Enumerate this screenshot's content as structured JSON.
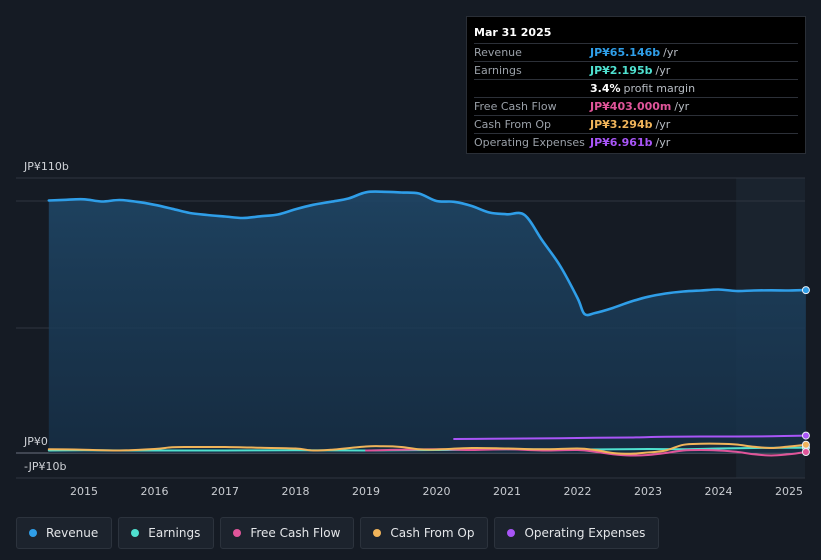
{
  "tooltip": {
    "date": "Mar 31 2025",
    "rows": [
      {
        "label": "Revenue",
        "value": "JP¥65.146b",
        "unit": "/yr",
        "color": "#2f9ee8"
      },
      {
        "label": "Earnings",
        "value": "JP¥2.195b",
        "unit": "/yr",
        "color": "#4fe0cf"
      },
      {
        "label": "",
        "value": "3.4%",
        "unit": "profit margin",
        "color": "#ffffff"
      },
      {
        "label": "Free Cash Flow",
        "value": "JP¥403.000m",
        "unit": "/yr",
        "color": "#e0559a"
      },
      {
        "label": "Cash From Op",
        "value": "JP¥3.294b",
        "unit": "/yr",
        "color": "#f0b45a"
      },
      {
        "label": "Operating Expenses",
        "value": "JP¥6.961b",
        "unit": "/yr",
        "color": "#a855f7"
      }
    ]
  },
  "legend": [
    {
      "label": "Revenue",
      "color": "#2f9ee8"
    },
    {
      "label": "Earnings",
      "color": "#4fe0cf"
    },
    {
      "label": "Free Cash Flow",
      "color": "#e0559a"
    },
    {
      "label": "Cash From Op",
      "color": "#f0b45a"
    },
    {
      "label": "Operating Expenses",
      "color": "#a855f7"
    }
  ],
  "chart_data": {
    "type": "line",
    "ylim": [
      -10,
      110
    ],
    "y_tick_labels": [
      {
        "value": 110,
        "label": "JP¥110b"
      },
      {
        "value": 0,
        "label": "JP¥0"
      },
      {
        "value": -10,
        "label": "-JP¥10b"
      }
    ],
    "x_tick_labels": [
      "2015",
      "2016",
      "2017",
      "2018",
      "2019",
      "2020",
      "2021",
      "2022",
      "2023",
      "2024",
      "2025"
    ],
    "forecast_shade_start": 2024.25,
    "series": [
      {
        "name": "Revenue",
        "color": "#2f9ee8",
        "fill": true,
        "points": [
          [
            2014.5,
            101.0
          ],
          [
            2014.75,
            101.3
          ],
          [
            2015.0,
            101.5
          ],
          [
            2015.25,
            100.6
          ],
          [
            2015.5,
            101.2
          ],
          [
            2015.75,
            100.5
          ],
          [
            2016.0,
            99.3
          ],
          [
            2016.25,
            97.7
          ],
          [
            2016.5,
            96.0
          ],
          [
            2016.75,
            95.2
          ],
          [
            2017.0,
            94.6
          ],
          [
            2017.25,
            94.0
          ],
          [
            2017.5,
            94.7
          ],
          [
            2017.75,
            95.4
          ],
          [
            2018.0,
            97.5
          ],
          [
            2018.25,
            99.3
          ],
          [
            2018.5,
            100.5
          ],
          [
            2018.75,
            101.8
          ],
          [
            2019.0,
            104.3
          ],
          [
            2019.25,
            104.5
          ],
          [
            2019.5,
            104.2
          ],
          [
            2019.75,
            103.8
          ],
          [
            2020.0,
            100.8
          ],
          [
            2020.25,
            100.5
          ],
          [
            2020.5,
            98.8
          ],
          [
            2020.75,
            96.2
          ],
          [
            2021.0,
            95.5
          ],
          [
            2021.25,
            95.2
          ],
          [
            2021.5,
            85.0
          ],
          [
            2021.75,
            75.0
          ],
          [
            2022.0,
            62.0
          ],
          [
            2022.1,
            55.6
          ],
          [
            2022.25,
            56.0
          ],
          [
            2022.5,
            58.0
          ],
          [
            2022.75,
            60.5
          ],
          [
            2023.0,
            62.5
          ],
          [
            2023.25,
            63.8
          ],
          [
            2023.5,
            64.6
          ],
          [
            2023.75,
            65.0
          ],
          [
            2024.0,
            65.4
          ],
          [
            2024.25,
            64.8
          ],
          [
            2024.5,
            65.0
          ],
          [
            2024.75,
            65.1
          ],
          [
            2025.0,
            65.0
          ],
          [
            2025.24,
            65.146
          ]
        ]
      },
      {
        "name": "Earnings",
        "color": "#4fe0cf",
        "points": [
          [
            2014.5,
            1.0
          ],
          [
            2015.0,
            1.1
          ],
          [
            2016.0,
            1.0
          ],
          [
            2017.0,
            1.0
          ],
          [
            2018.0,
            1.1
          ],
          [
            2019.0,
            1.0
          ],
          [
            2020.0,
            1.2
          ],
          [
            2021.0,
            1.5
          ],
          [
            2022.0,
            1.4
          ],
          [
            2023.0,
            1.6
          ],
          [
            2023.5,
            1.5
          ],
          [
            2024.0,
            1.8
          ],
          [
            2024.5,
            2.0
          ],
          [
            2025.0,
            2.1
          ],
          [
            2025.24,
            2.195
          ]
        ]
      },
      {
        "name": "Free Cash Flow",
        "color": "#e0559a",
        "points": [
          [
            2019.0,
            1.0
          ],
          [
            2020.0,
            1.5
          ],
          [
            2020.5,
            1.2
          ],
          [
            2021.0,
            1.5
          ],
          [
            2021.5,
            1.0
          ],
          [
            2022.0,
            1.2
          ],
          [
            2022.25,
            0.5
          ],
          [
            2022.5,
            -0.5
          ],
          [
            2022.75,
            -1.0
          ],
          [
            2023.0,
            -0.8
          ],
          [
            2023.25,
            0.0
          ],
          [
            2023.5,
            1.0
          ],
          [
            2023.75,
            1.2
          ],
          [
            2024.0,
            1.0
          ],
          [
            2024.25,
            0.5
          ],
          [
            2024.5,
            -0.5
          ],
          [
            2024.75,
            -1.0
          ],
          [
            2025.0,
            -0.5
          ],
          [
            2025.24,
            0.403
          ]
        ]
      },
      {
        "name": "Cash From Op",
        "color": "#f0b45a",
        "points": [
          [
            2014.5,
            1.5
          ],
          [
            2015.0,
            1.3
          ],
          [
            2015.5,
            1.0
          ],
          [
            2016.0,
            1.6
          ],
          [
            2016.25,
            2.3
          ],
          [
            2016.5,
            2.4
          ],
          [
            2017.0,
            2.4
          ],
          [
            2017.5,
            2.1
          ],
          [
            2018.0,
            1.8
          ],
          [
            2018.25,
            1.0
          ],
          [
            2018.5,
            1.3
          ],
          [
            2019.0,
            2.6
          ],
          [
            2019.25,
            2.7
          ],
          [
            2019.5,
            2.4
          ],
          [
            2019.75,
            1.5
          ],
          [
            2020.0,
            1.4
          ],
          [
            2020.5,
            2.0
          ],
          [
            2021.0,
            1.8
          ],
          [
            2021.5,
            1.5
          ],
          [
            2022.0,
            1.8
          ],
          [
            2022.25,
            1.2
          ],
          [
            2022.5,
            0.0
          ],
          [
            2022.75,
            -0.3
          ],
          [
            2023.0,
            0.2
          ],
          [
            2023.25,
            1.0
          ],
          [
            2023.5,
            3.3
          ],
          [
            2023.75,
            3.7
          ],
          [
            2024.0,
            3.7
          ],
          [
            2024.25,
            3.4
          ],
          [
            2024.5,
            2.5
          ],
          [
            2024.75,
            2.0
          ],
          [
            2025.0,
            2.6
          ],
          [
            2025.24,
            3.294
          ]
        ]
      },
      {
        "name": "Operating Expenses",
        "color": "#a855f7",
        "points": [
          [
            2020.25,
            5.6
          ],
          [
            2020.75,
            5.7
          ],
          [
            2021.25,
            5.8
          ],
          [
            2021.75,
            5.9
          ],
          [
            2022.25,
            6.1
          ],
          [
            2022.75,
            6.2
          ],
          [
            2023.25,
            6.5
          ],
          [
            2023.75,
            6.6
          ],
          [
            2024.25,
            6.6
          ],
          [
            2024.75,
            6.7
          ],
          [
            2025.24,
            6.961
          ]
        ]
      }
    ]
  }
}
